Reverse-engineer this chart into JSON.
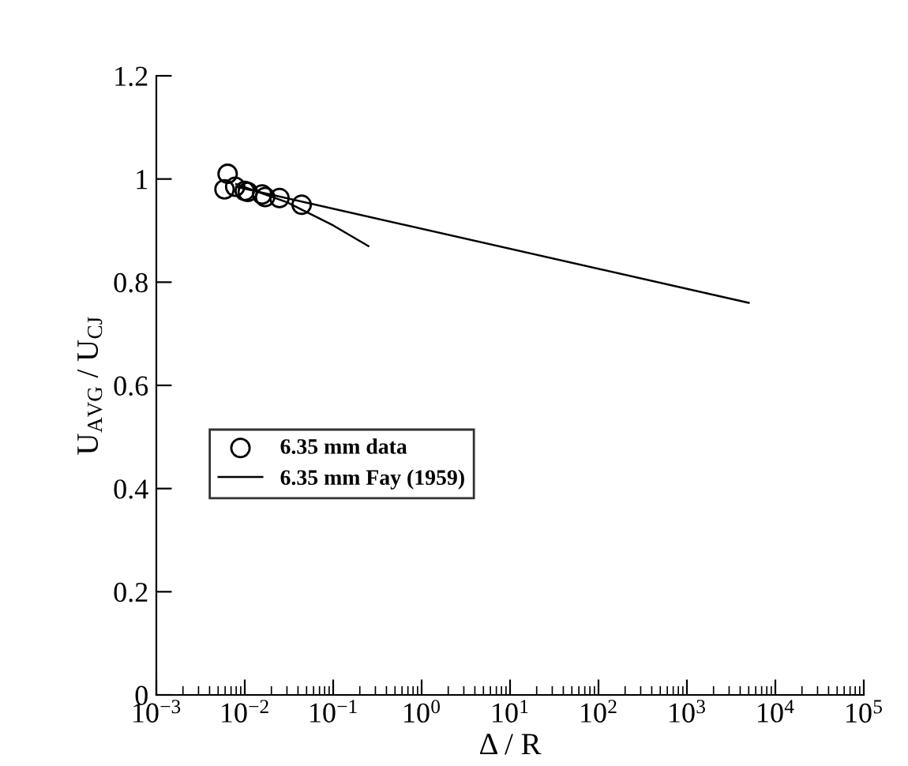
{
  "chart_data": {
    "type": "scatter",
    "xlabel": "Δ / R",
    "ylabel": "U$_{AVG}$ / U$_{CJ}$",
    "log": "x",
    "xlim": [
      0.001,
      100000
    ],
    "xticks": [
      {
        "value": 0.001,
        "label": "10$^{−3}$"
      },
      {
        "value": 0.01,
        "label": "10$^{−2}$"
      },
      {
        "value": 0.1,
        "label": "10$^{−1}$"
      },
      {
        "value": 1,
        "label": "10$^{0}$"
      },
      {
        "value": 10,
        "label": "10$^{1}$"
      },
      {
        "value": 100,
        "label": "10$^{2}$"
      },
      {
        "value": 1000,
        "label": "10$^{3}$"
      },
      {
        "value": 10000,
        "label": "10$^{4}$"
      },
      {
        "value": 100000,
        "label": "10$^{5}$"
      }
    ],
    "ylim": [
      0,
      1.2
    ],
    "yticks": [
      0,
      0.2,
      0.4,
      0.6,
      0.8,
      1,
      1.2
    ],
    "grid": false,
    "legend": "left",
    "series": [
      {
        "name": "6.35 mm data",
        "marker": "circle",
        "color": "#000000",
        "x": [
          0.0059,
          0.0064,
          0.0078,
          0.01,
          0.0108,
          0.0157,
          0.017,
          0.0247,
          0.044
        ],
        "values": [
          0.98,
          1.01,
          0.985,
          0.977,
          0.975,
          0.97,
          0.965,
          0.963,
          0.95
        ]
      },
      {
        "name": "6.35 mm Fay (1959)",
        "type": "line",
        "marker": "none",
        "color": "#000000",
        "x": [
          0.008,
          5000
        ],
        "values": [
          0.985,
          0.76
        ]
      },
      {
        "type": "line",
        "marker": "none",
        "color": "#000000",
        "x": [
          0.008,
          0.03,
          0.1,
          0.25
        ],
        "values": [
          0.99,
          0.955,
          0.91,
          0.87
        ]
      }
    ]
  }
}
